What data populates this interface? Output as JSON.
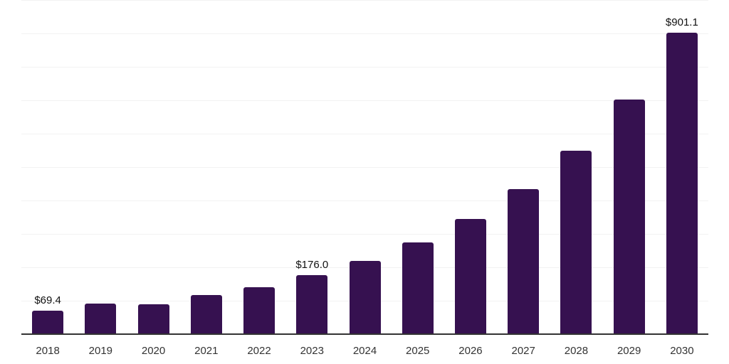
{
  "style": {
    "background": "#ffffff",
    "bar_color": "#361150",
    "axis_color": "#333333",
    "gridline_color": "#f2f2f2",
    "data_label_color": "#111111",
    "tick_label_color": "#333333"
  },
  "chart_data": {
    "type": "bar",
    "categories": [
      "2018",
      "2019",
      "2020",
      "2021",
      "2022",
      "2023",
      "2024",
      "2025",
      "2026",
      "2027",
      "2028",
      "2029",
      "2030"
    ],
    "values": [
      69.4,
      92,
      90,
      116,
      140,
      176.0,
      220,
      275,
      344,
      435,
      549,
      703,
      901.1
    ],
    "data_labels": [
      "$69.4",
      null,
      null,
      null,
      null,
      "$176.0",
      null,
      null,
      null,
      null,
      null,
      null,
      "$901.1"
    ],
    "title": "",
    "xlabel": "",
    "ylabel": "",
    "ylim": [
      0,
      1000
    ],
    "gridline_step": 100,
    "grid": true,
    "legend": false
  }
}
